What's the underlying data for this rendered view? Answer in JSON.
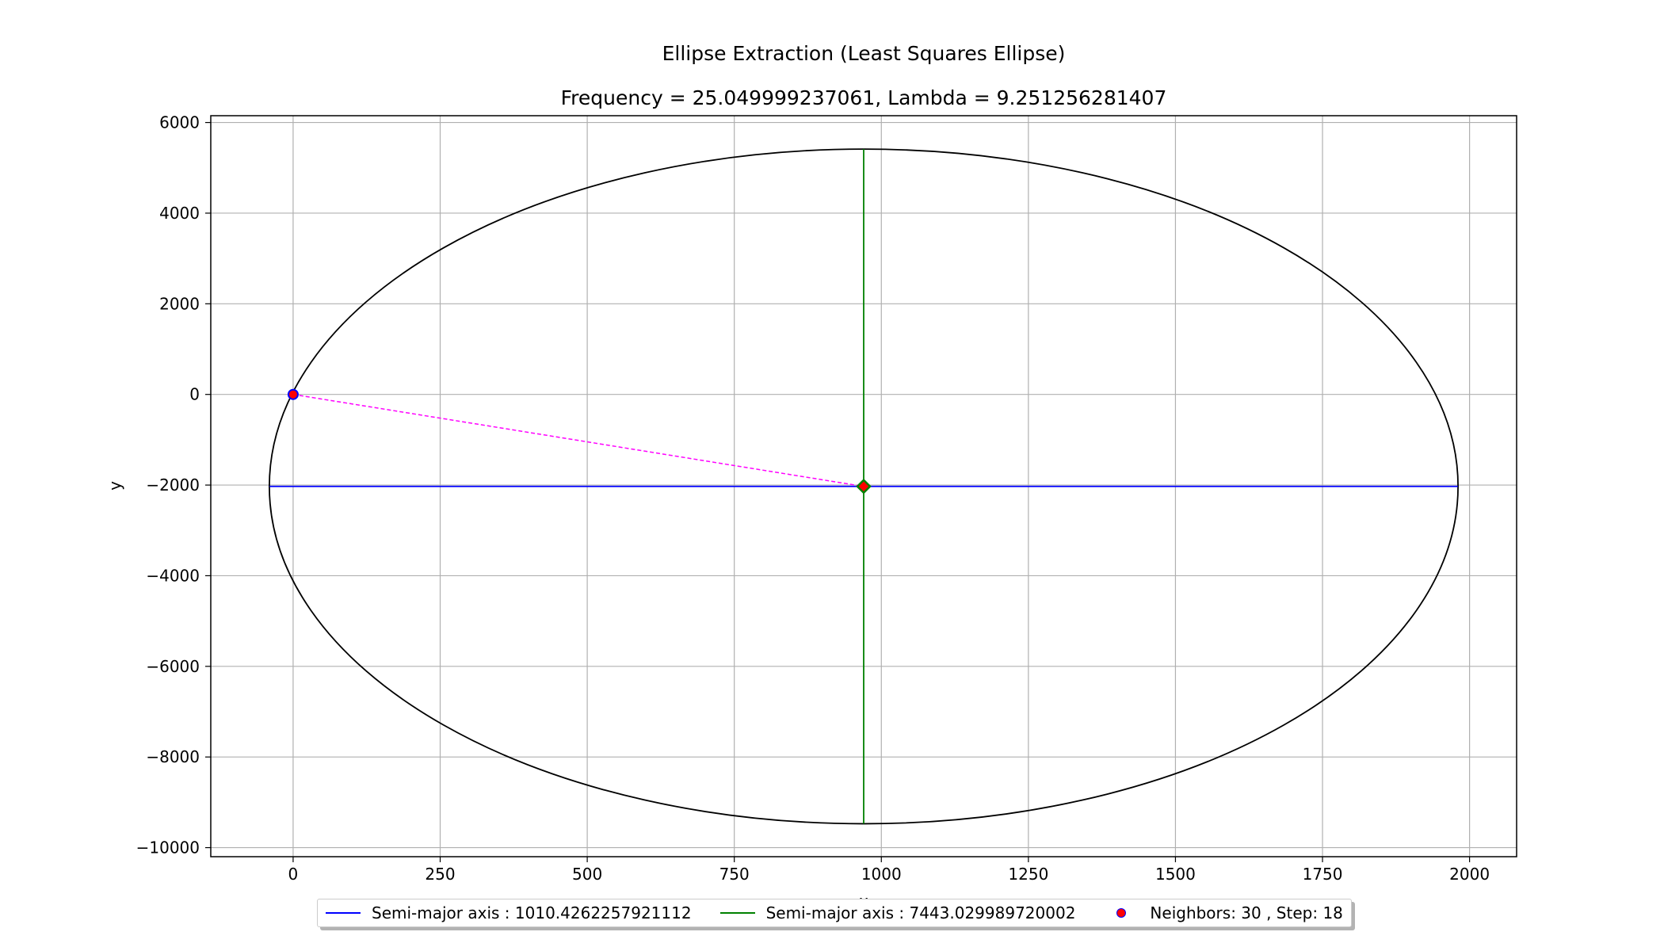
{
  "chart_data": {
    "type": "line",
    "title": "Ellipse Extraction (Least Squares Ellipse)",
    "subtitle": "Frequency = 25.049999237061, Lambda = 9.251256281407",
    "xlabel": "x",
    "ylabel": "y",
    "xlim": [
      -140,
      2080
    ],
    "ylim": [
      -10200,
      6150
    ],
    "grid": true,
    "x_ticks": [
      0,
      250,
      500,
      750,
      1000,
      1250,
      1500,
      1750,
      2000
    ],
    "x_tick_labels": [
      "0",
      "250",
      "500",
      "750",
      "1000",
      "1250",
      "1500",
      "1750",
      "2000"
    ],
    "y_ticks": [
      6000,
      4000,
      2000,
      0,
      -2000,
      -4000,
      -6000,
      -8000,
      -10000
    ],
    "y_tick_labels": [
      "6000",
      "4000",
      "2000",
      "0",
      "−2000",
      "−4000",
      "−6000",
      "−8000",
      "−10000"
    ],
    "ellipse": {
      "center": [
        970,
        -2030
      ],
      "semi_axis_x": 1010.4262257921112,
      "semi_axis_y": 7443.029989720002,
      "color": "#000000"
    },
    "series": [
      {
        "name": "Semi-major axis : 1010.4262257921112",
        "kind": "line",
        "color": "#0000ff",
        "x": [
          -40,
          1980
        ],
        "y": [
          -2030,
          -2030
        ]
      },
      {
        "name": "Semi-major axis : 7443.029989720002",
        "kind": "line",
        "color": "#008000",
        "x": [
          970,
          970
        ],
        "y": [
          5413,
          -9473
        ]
      },
      {
        "name": "Neighbors: 30 , Step: 18",
        "kind": "point",
        "color": "#ff0000",
        "edge_color": "#0000ff",
        "x": [
          0
        ],
        "y": [
          0
        ]
      }
    ],
    "center_marker": {
      "x": 970,
      "y": -2030,
      "color": "#ff0000",
      "edge_color": "#008000",
      "shape": "diamond"
    },
    "connector": {
      "x": [
        0,
        970
      ],
      "y": [
        0,
        -2030
      ],
      "color": "#ff00ff",
      "style": "dashed"
    },
    "legend": {
      "placement": "lower-center"
    }
  }
}
